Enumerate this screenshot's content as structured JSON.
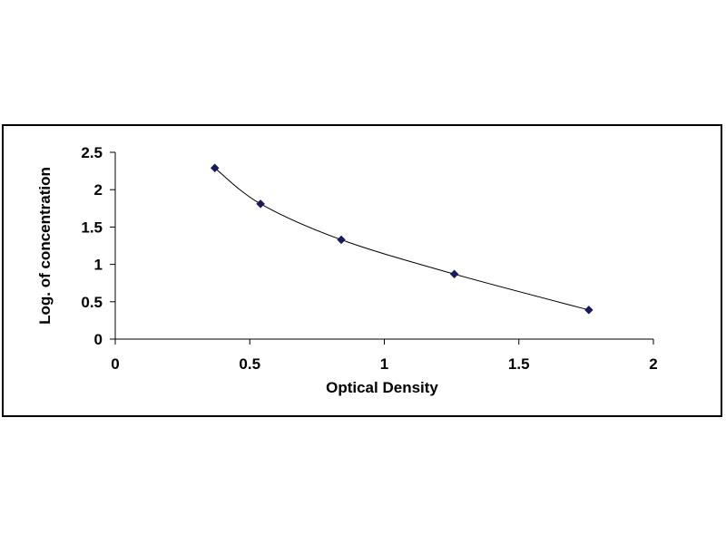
{
  "chart_data": {
    "type": "scatter",
    "title": "",
    "xlabel": "Optical Density",
    "ylabel": "Log. of concentration",
    "xlim": [
      0,
      2
    ],
    "ylim": [
      0,
      2.5
    ],
    "x_ticks": [
      "0",
      "0.5",
      "1",
      "1.5",
      "2"
    ],
    "y_ticks": [
      "0",
      "0.5",
      "1",
      "1.5",
      "2",
      "2.5"
    ],
    "grid": false,
    "legend": "none",
    "trendline": "smooth",
    "colors": {
      "marker": "#1a1a5e",
      "line": "#000000"
    },
    "series": [
      {
        "x": [
          0.37,
          0.54,
          0.84,
          1.26,
          1.76
        ],
        "y": [
          2.29,
          1.81,
          1.33,
          0.87,
          0.39
        ]
      }
    ]
  }
}
